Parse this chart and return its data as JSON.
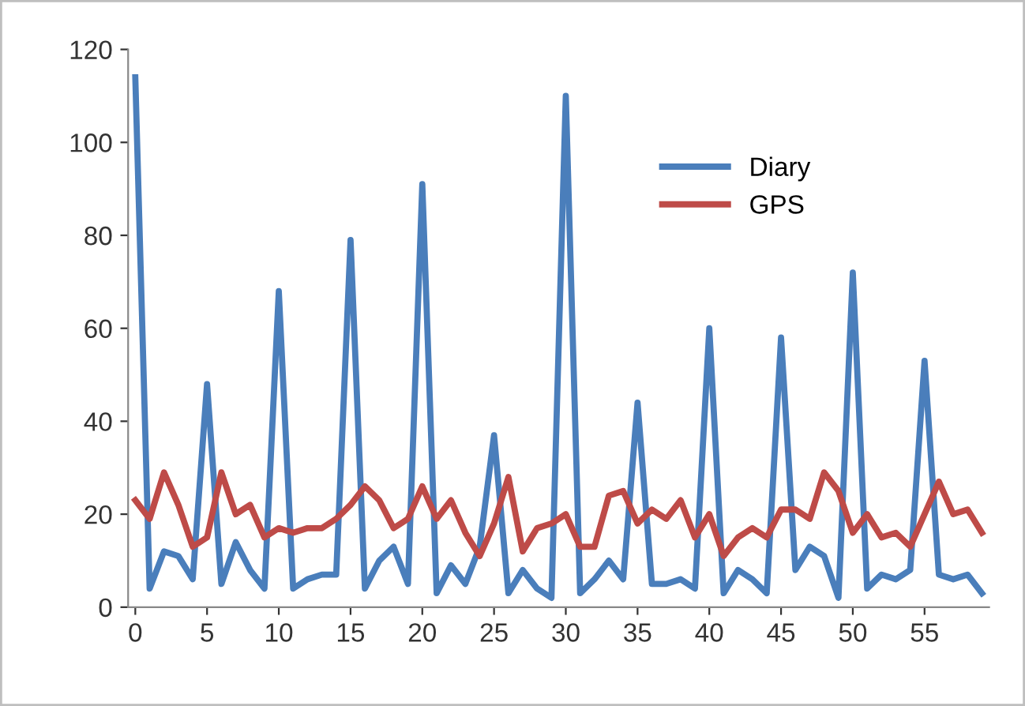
{
  "chart_data": {
    "type": "line",
    "x": [
      0,
      1,
      2,
      3,
      4,
      5,
      6,
      7,
      8,
      9,
      10,
      11,
      12,
      13,
      14,
      15,
      16,
      17,
      18,
      19,
      20,
      21,
      22,
      23,
      24,
      25,
      26,
      27,
      28,
      29,
      30,
      31,
      32,
      33,
      34,
      35,
      36,
      37,
      38,
      39,
      40,
      41,
      42,
      43,
      44,
      45,
      46,
      47,
      48,
      49,
      50,
      51,
      52,
      53,
      54,
      55,
      56,
      57,
      58,
      59
    ],
    "series": [
      {
        "name": "Diary",
        "color": "#4a7ebb",
        "values": [
          114,
          4,
          12,
          11,
          6,
          48,
          5,
          14,
          8,
          4,
          68,
          4,
          6,
          7,
          7,
          79,
          4,
          10,
          13,
          5,
          91,
          3,
          9,
          5,
          13,
          37,
          3,
          8,
          4,
          2,
          110,
          3,
          6,
          10,
          6,
          44,
          5,
          5,
          6,
          4,
          60,
          3,
          8,
          6,
          3,
          58,
          8,
          13,
          11,
          2,
          72,
          4,
          7,
          6,
          8,
          53,
          7,
          6,
          7,
          3
        ]
      },
      {
        "name": "GPS",
        "color": "#be4b48",
        "values": [
          23,
          19,
          29,
          22,
          13,
          15,
          29,
          20,
          22,
          15,
          17,
          16,
          17,
          17,
          19,
          22,
          26,
          23,
          17,
          19,
          26,
          19,
          23,
          16,
          11,
          18,
          28,
          12,
          17,
          18,
          20,
          13,
          13,
          24,
          25,
          18,
          21,
          19,
          23,
          15,
          20,
          11,
          15,
          17,
          15,
          21,
          21,
          19,
          29,
          25,
          16,
          20,
          15,
          16,
          13,
          20,
          27,
          20,
          21,
          16
        ]
      }
    ],
    "xlim": [
      -0.5,
      59.5
    ],
    "xticks": [
      0,
      5,
      10,
      15,
      20,
      25,
      30,
      35,
      40,
      45,
      50,
      55
    ],
    "ylim": [
      0,
      120
    ],
    "yticks": [
      0,
      20,
      40,
      60,
      80,
      100,
      120
    ],
    "grid": false,
    "legend": "top right",
    "marker": "none",
    "line_style": "solid"
  }
}
